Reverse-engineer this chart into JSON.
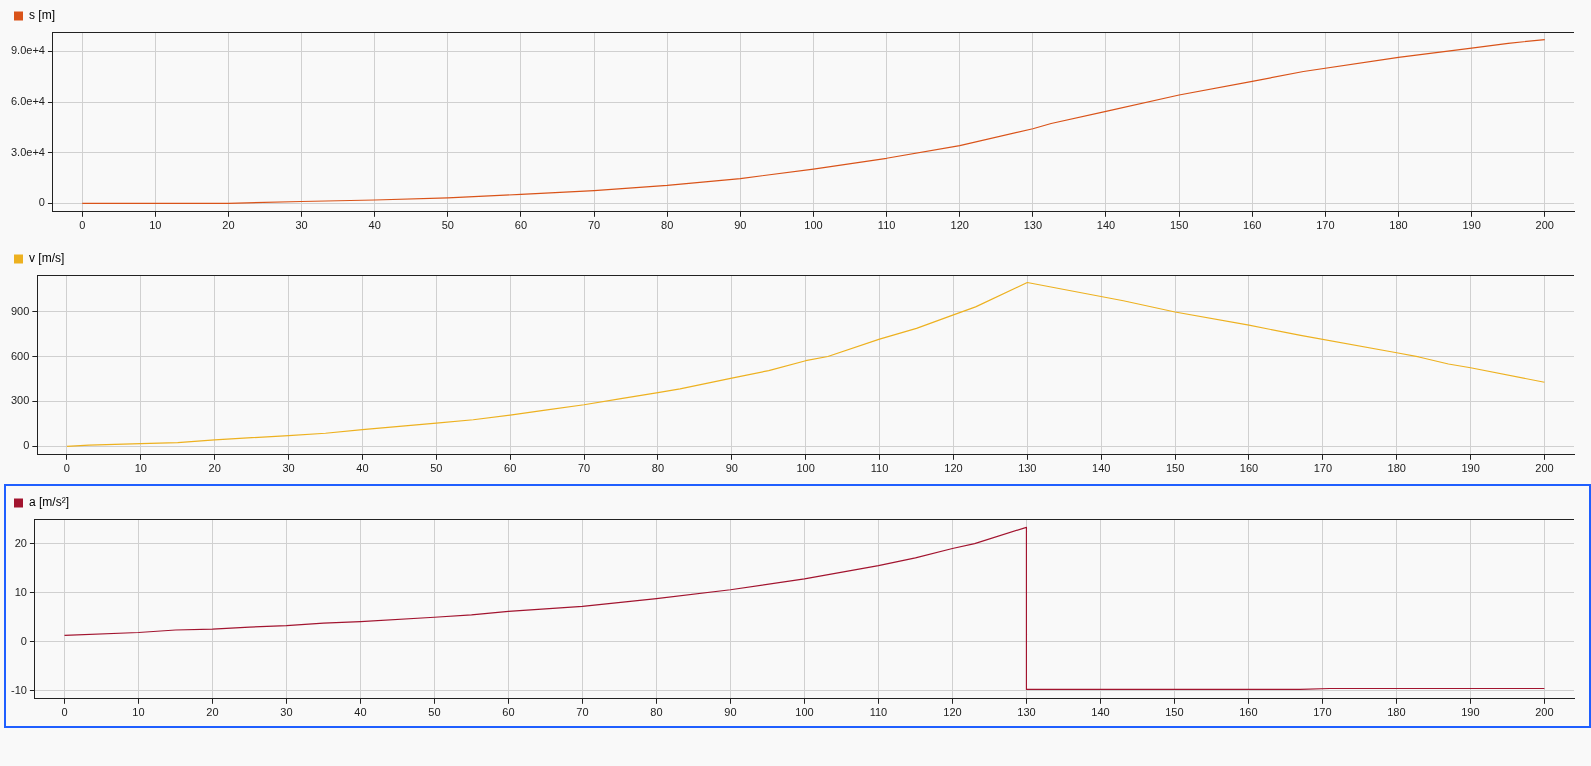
{
  "chart_data": [
    {
      "type": "line",
      "legend": "top left",
      "grid": true,
      "marker": "none",
      "line_style": "solid",
      "xlim": [
        -4,
        204
      ],
      "xticks": [
        0,
        10,
        20,
        30,
        40,
        50,
        60,
        70,
        80,
        90,
        100,
        110,
        120,
        130,
        140,
        150,
        160,
        170,
        180,
        190,
        200
      ],
      "ylim": [
        -5000,
        101500
      ],
      "yticks": [
        0,
        {
          "value": 30000,
          "label": "3.0e+4"
        },
        {
          "value": 60000,
          "label": "6.0e+4"
        },
        {
          "value": 90000,
          "label": "9.0e+4"
        }
      ],
      "series": [
        {
          "name": "s [m]",
          "color": "#d95319",
          "x": [
            0,
            20,
            30,
            40,
            50,
            60,
            70,
            80,
            90,
            100,
            110,
            120,
            130,
            132.5,
            140,
            150,
            160,
            167,
            180,
            190,
            195,
            200
          ],
          "values": [
            0,
            0,
            1100,
            2000,
            3300,
            5300,
            7500,
            10600,
            14700,
            20300,
            26700,
            34200,
            44200,
            47300,
            54500,
            64200,
            72300,
            78100,
            86500,
            92000,
            94800,
            97000
          ]
        }
      ]
    },
    {
      "type": "line",
      "legend": "top left",
      "grid": true,
      "marker": "none",
      "line_style": "solid",
      "xlim": [
        -4,
        204
      ],
      "xticks": [
        0,
        10,
        20,
        30,
        40,
        50,
        60,
        70,
        80,
        90,
        100,
        110,
        120,
        130,
        140,
        150,
        160,
        170,
        180,
        190,
        200
      ],
      "ylim": [
        -56,
        1144
      ],
      "yticks": [
        0,
        300,
        600,
        900
      ],
      "series": [
        {
          "name": "v [m/s]",
          "color": "#edb120",
          "x": [
            0,
            3,
            10,
            15,
            20,
            30,
            35,
            40,
            50,
            55,
            60,
            65,
            70,
            75,
            80,
            83,
            90,
            95,
            100,
            103,
            110,
            115,
            120,
            123,
            130,
            143,
            150,
            160,
            167,
            180,
            183,
            187,
            190,
            200
          ],
          "values": [
            0,
            9,
            19,
            25,
            44,
            72,
            88,
            112,
            156,
            178,
            209,
            244,
            278,
            319,
            359,
            384,
            456,
            506,
            572,
            600,
            716,
            788,
            878,
            931,
            1094,
            972,
            897,
            809,
            741,
            625,
            597,
            550,
            525,
            428
          ]
        }
      ]
    },
    {
      "type": "line",
      "legend": "top left",
      "grid": true,
      "marker": "none",
      "line_style": "solid",
      "xlim": [
        -4,
        204
      ],
      "xticks": [
        0,
        10,
        20,
        30,
        40,
        50,
        60,
        70,
        80,
        90,
        100,
        110,
        120,
        130,
        140,
        150,
        160,
        170,
        180,
        190,
        200
      ],
      "ylim": [
        -11.6,
        25
      ],
      "yticks": [
        -10,
        0,
        10,
        20
      ],
      "series": [
        {
          "name": "a [m/s²]",
          "color": "#a2142f",
          "x": [
            0,
            10,
            15,
            20,
            25,
            30,
            35,
            40,
            50,
            55,
            60,
            70,
            80,
            90,
            100,
            110,
            115,
            120,
            123,
            130,
            130,
            167,
            171,
            200
          ],
          "values": [
            1.3,
            1.9,
            2.4,
            2.6,
            3.0,
            3.3,
            3.8,
            4.1,
            5.0,
            5.5,
            6.2,
            7.2,
            8.8,
            10.6,
            12.8,
            15.5,
            17.1,
            19.0,
            20.0,
            23.3,
            -9.7,
            -9.7,
            -9.5,
            -9.5
          ]
        }
      ]
    }
  ]
}
